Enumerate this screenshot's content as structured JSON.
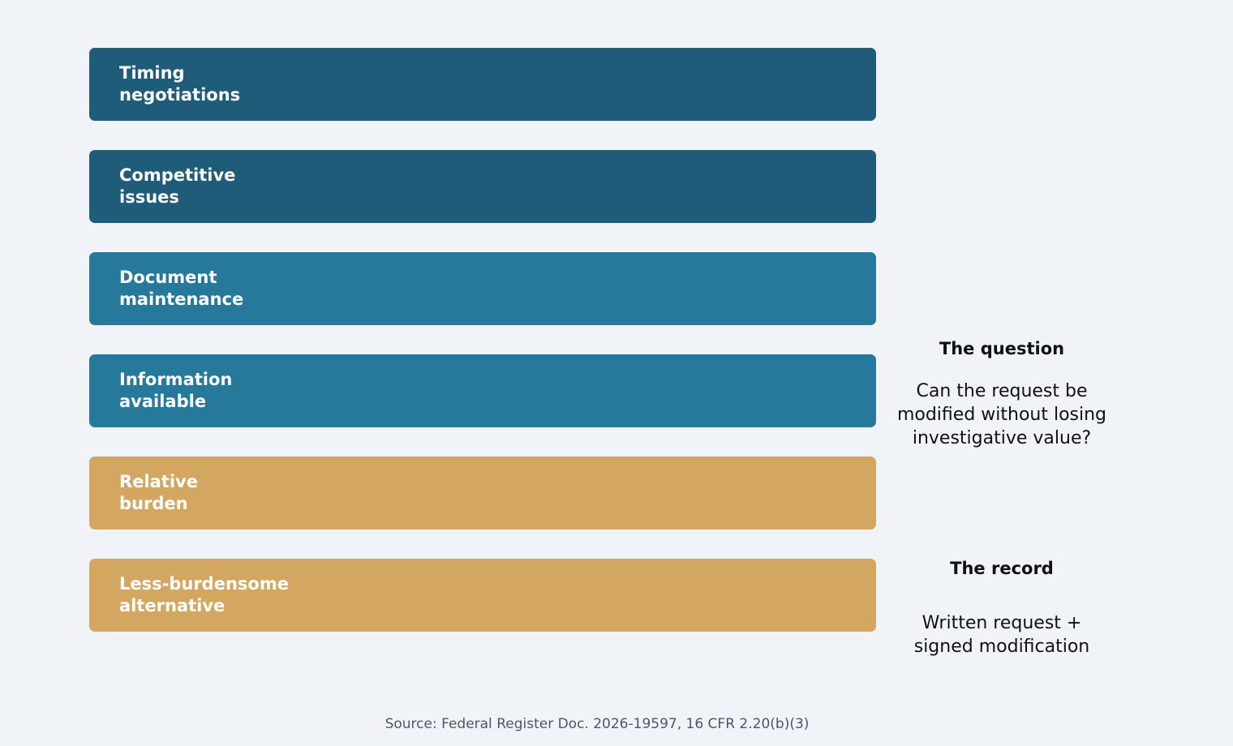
{
  "factors": [
    {
      "label": "Timing\nnegotiations",
      "color": "#1f5c7a"
    },
    {
      "label": "Competitive\nissues",
      "color": "#1f5c7a"
    },
    {
      "label": "Document\nmaintenance",
      "color": "#27799c"
    },
    {
      "label": "Information\navailable",
      "color": "#27799c"
    },
    {
      "label": "Relative\nburden",
      "color": "#d4a760"
    },
    {
      "label": "Less-burdensome\nalternative",
      "color": "#d4a760"
    }
  ],
  "question": {
    "heading": "The question",
    "text": "Can the request be\nmodified without losing\ninvestigative value?"
  },
  "record": {
    "heading": "The record",
    "text": "Written request +\nsigned modification"
  },
  "source": "Source: Federal Register Doc. 2026-19597, 16 CFR 2.20(b)(3)"
}
